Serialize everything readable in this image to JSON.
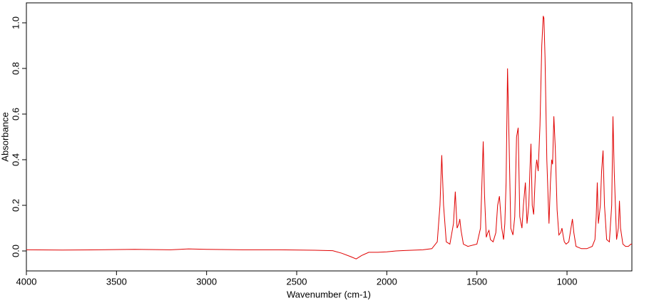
{
  "chart_data": {
    "type": "line",
    "xlabel": "Wavenumber (cm-1)",
    "ylabel": "Absorbance",
    "color": "#e00000",
    "xlim": [
      4000,
      640
    ],
    "ylim": [
      -0.0875,
      1.0875
    ],
    "xticks": [
      4000,
      3500,
      3000,
      2500,
      2000,
      1500,
      1000
    ],
    "yticks": [
      {
        "value": 0,
        "label": "0.0"
      },
      0.2,
      0.4,
      0.6,
      0.8,
      {
        "value": 1,
        "label": "1.0"
      }
    ],
    "x": [
      4000,
      3800,
      3600,
      3400,
      3200,
      3100,
      3000,
      2800,
      2600,
      2400,
      2300,
      2250,
      2200,
      2170,
      2140,
      2100,
      2050,
      2000,
      1950,
      1900,
      1800,
      1750,
      1720,
      1705,
      1695,
      1685,
      1670,
      1650,
      1630,
      1620,
      1610,
      1600,
      1595,
      1588,
      1575,
      1550,
      1500,
      1480,
      1470,
      1465,
      1458,
      1448,
      1440,
      1433,
      1425,
      1410,
      1395,
      1385,
      1375,
      1362,
      1352,
      1345,
      1338,
      1330,
      1322,
      1312,
      1300,
      1290,
      1280,
      1271,
      1262,
      1250,
      1242,
      1231,
      1222,
      1212,
      1206,
      1200,
      1193,
      1185,
      1175,
      1168,
      1160,
      1150,
      1140,
      1132,
      1128,
      1122,
      1112,
      1100,
      1092,
      1085,
      1080,
      1073,
      1065,
      1055,
      1045,
      1035,
      1028,
      1022,
      1015,
      1005,
      990,
      978,
      970,
      962,
      950,
      920,
      890,
      860,
      845,
      838,
      832,
      826,
      815,
      808,
      800,
      792,
      780,
      765,
      752,
      745,
      738,
      725,
      715,
      709,
      703,
      690,
      675,
      660,
      645,
      640
    ],
    "values": [
      0.005,
      0.004,
      0.005,
      0.007,
      0.005,
      0.009,
      0.007,
      0.005,
      0.005,
      0.003,
      0.001,
      -0.01,
      -0.025,
      -0.035,
      -0.02,
      -0.006,
      -0.006,
      -0.004,
      0,
      0.002,
      0.005,
      0.01,
      0.04,
      0.2,
      0.42,
      0.2,
      0.04,
      0.03,
      0.12,
      0.26,
      0.1,
      0.12,
      0.14,
      0.09,
      0.03,
      0.02,
      0.03,
      0.1,
      0.35,
      0.48,
      0.25,
      0.06,
      0.08,
      0.09,
      0.05,
      0.04,
      0.08,
      0.2,
      0.24,
      0.1,
      0.05,
      0.12,
      0.3,
      0.8,
      0.5,
      0.1,
      0.07,
      0.15,
      0.5,
      0.54,
      0.15,
      0.1,
      0.2,
      0.3,
      0.12,
      0.2,
      0.35,
      0.47,
      0.2,
      0.16,
      0.35,
      0.4,
      0.35,
      0.55,
      0.9,
      1.03,
      1.02,
      0.85,
      0.4,
      0.12,
      0.3,
      0.4,
      0.38,
      0.59,
      0.45,
      0.18,
      0.07,
      0.08,
      0.1,
      0.07,
      0.04,
      0.03,
      0.04,
      0.1,
      0.14,
      0.08,
      0.02,
      0.01,
      0.01,
      0.02,
      0.05,
      0.15,
      0.3,
      0.12,
      0.2,
      0.35,
      0.44,
      0.2,
      0.05,
      0.04,
      0.2,
      0.59,
      0.35,
      0.05,
      0.1,
      0.22,
      0.1,
      0.03,
      0.02,
      0.02,
      0.03,
      0.03
    ]
  }
}
